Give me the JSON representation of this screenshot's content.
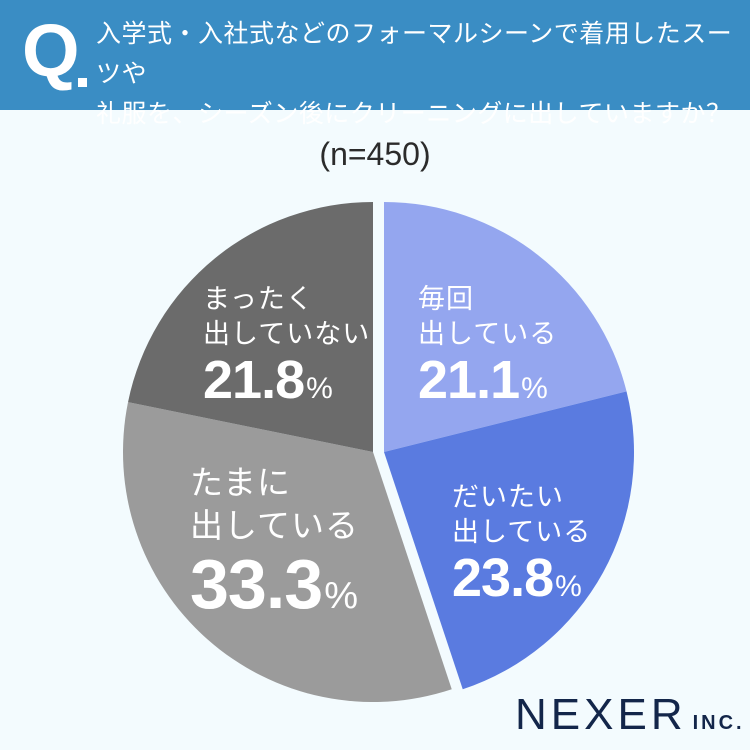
{
  "header": {
    "q_mark": "Q",
    "question_line1": "入学式・入社式などのフォーマルシーンで着用したスーツや",
    "question_line2": "礼服を、シーズン後にクリーニングに出していますか？"
  },
  "sample_size": "(n=450)",
  "labels": [
    {
      "line1": "毎回",
      "line2": "出している",
      "value": "21.1",
      "unit": "%"
    },
    {
      "line1": "だいたい",
      "line2": "出している",
      "value": "23.8",
      "unit": "%"
    },
    {
      "line1": "たまに",
      "line2": "出している",
      "value": "33.3",
      "unit": "%"
    },
    {
      "line1": "まったく",
      "line2": "出していない",
      "value": "21.8",
      "unit": "%"
    }
  ],
  "logo": {
    "main": "NEXER",
    "suffix": "INC."
  },
  "chart_data": {
    "type": "pie",
    "title": "入学式・入社式などのフォーマルシーンで着用したスーツや礼服を、シーズン後にクリーニングに出していますか？",
    "subtitle": "(n=450)",
    "categories": [
      "毎回出している",
      "だいたい出している",
      "たまに出している",
      "まったく出していない"
    ],
    "values": [
      21.1,
      23.8,
      33.3,
      21.8
    ],
    "colors": [
      "#94a6ef",
      "#5a7be0",
      "#9b9b9b",
      "#6b6b6b"
    ],
    "start_angle": "12 o'clock, clockwise",
    "exploded_group": [
      "毎回出している",
      "だいたい出している"
    ],
    "legend": "none (labels inside slices)"
  }
}
